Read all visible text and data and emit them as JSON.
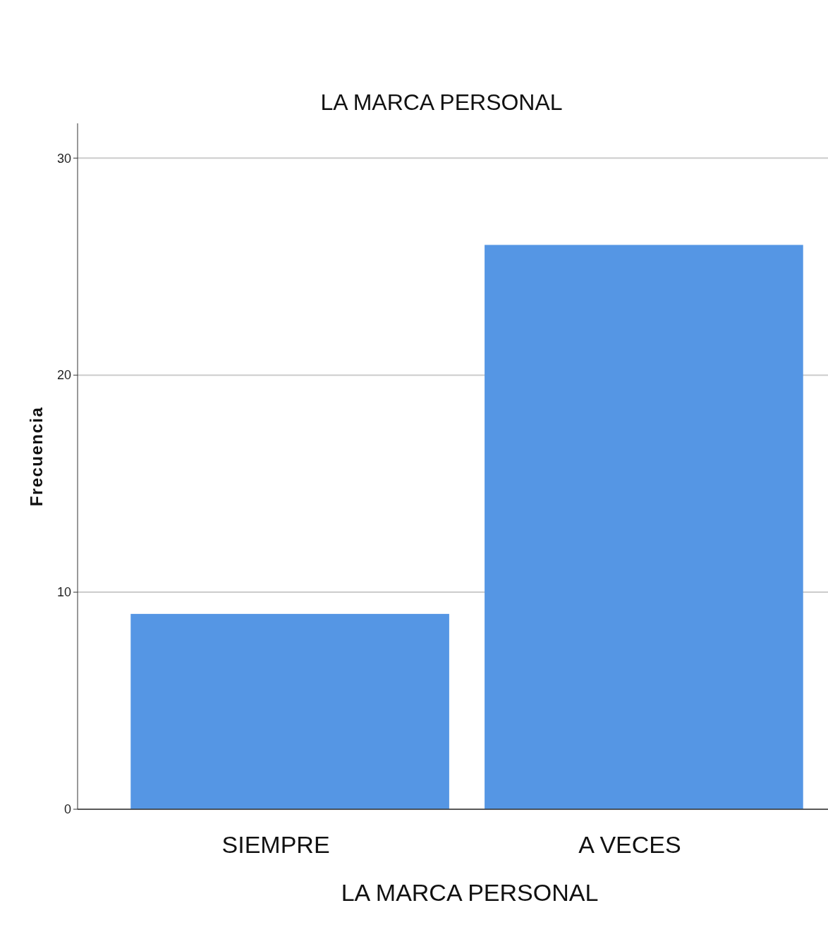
{
  "chart_data": {
    "type": "bar",
    "title": "LA MARCA PERSONAL",
    "xlabel": "LA MARCA PERSONAL",
    "ylabel": "Frecuencia",
    "categories": [
      "SIEMPRE",
      "A VECES"
    ],
    "values": [
      9,
      26
    ],
    "color": "#5596e4",
    "ylim": [
      0,
      31.6
    ],
    "yticks": [
      0,
      10,
      20,
      30
    ],
    "grid": "y"
  }
}
